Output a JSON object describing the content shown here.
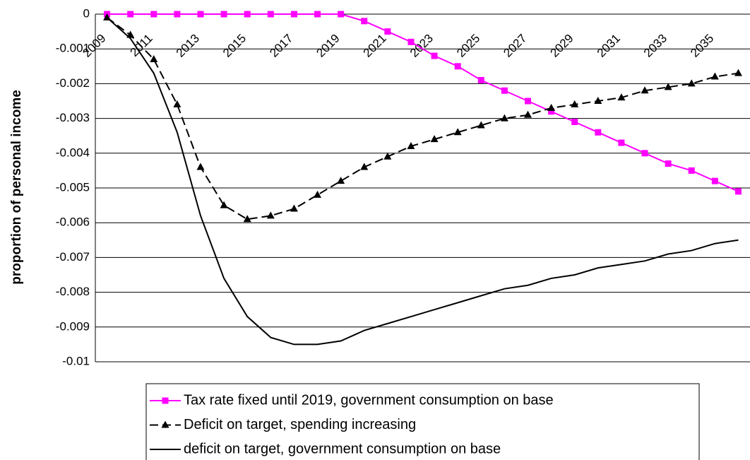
{
  "chart_data": {
    "type": "line",
    "y_label": "proportion of personal  income",
    "categories": [
      "2009",
      null,
      "2011",
      null,
      "2013",
      null,
      "2015",
      null,
      "2017",
      null,
      "2019",
      null,
      "2021",
      null,
      "2023",
      null,
      "2025",
      null,
      "2027",
      null,
      "2029",
      null,
      "2031",
      null,
      "2033",
      null,
      "2035",
      null
    ],
    "ylim": [
      -0.01,
      0
    ],
    "yticks": [
      0,
      -0.001,
      -0.002,
      -0.003,
      -0.004,
      -0.005,
      -0.006,
      -0.007,
      -0.008,
      -0.009,
      -0.01
    ],
    "grid": true,
    "series": [
      {
        "name": "Tax rate fixed until 2019, government consumption on base",
        "color": "#ff00ff",
        "marker": "square",
        "line_style": "solid",
        "values": [
          0,
          0,
          0,
          0,
          0,
          0,
          0,
          0,
          0,
          0,
          0,
          -0.0002,
          -0.0005,
          -0.0008,
          -0.0012,
          -0.0015,
          -0.0019,
          -0.0022,
          -0.0025,
          -0.0028,
          -0.0031,
          -0.0034,
          -0.0037,
          -0.004,
          -0.0043,
          -0.0045,
          -0.0048,
          -0.0051
        ]
      },
      {
        "name": "Deficit on target, spending increasing",
        "color": "#000000",
        "marker": "triangle",
        "line_style": "dashed",
        "values": [
          -0.0001,
          -0.0006,
          -0.0013,
          -0.0026,
          -0.0044,
          -0.0055,
          -0.0059,
          -0.0058,
          -0.0056,
          -0.0052,
          -0.0048,
          -0.0044,
          -0.0041,
          -0.0038,
          -0.0036,
          -0.0034,
          -0.0032,
          -0.003,
          -0.0029,
          -0.0027,
          -0.0026,
          -0.0025,
          -0.0024,
          -0.0022,
          -0.0021,
          -0.002,
          -0.0018,
          -0.0017
        ]
      },
      {
        "name": "deficit on target, government consumption on base",
        "color": "#000000",
        "marker": null,
        "line_style": "solid",
        "values": [
          -0.0001,
          -0.0007,
          -0.0017,
          -0.0034,
          -0.0058,
          -0.0076,
          -0.0087,
          -0.0093,
          -0.0095,
          -0.0095,
          -0.0094,
          -0.0091,
          -0.0089,
          -0.0087,
          -0.0085,
          -0.0083,
          -0.0081,
          -0.0079,
          -0.0078,
          -0.0076,
          -0.0075,
          -0.0073,
          -0.0072,
          -0.0071,
          -0.0069,
          -0.0068,
          -0.0066,
          -0.0065
        ]
      }
    ]
  }
}
